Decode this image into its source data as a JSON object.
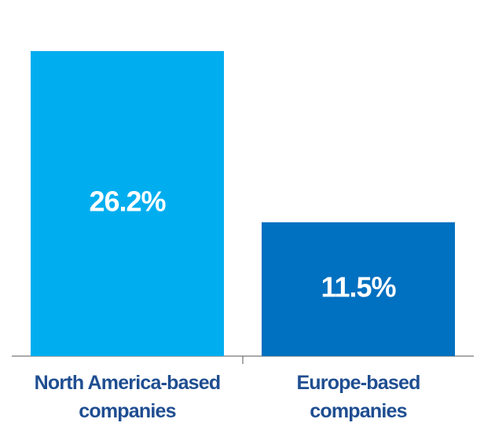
{
  "chart_data": {
    "type": "bar",
    "categories": [
      "North America-based companies",
      "Europe-based companies"
    ],
    "values": [
      26.2,
      11.5
    ],
    "value_labels": [
      "26.2%",
      "11.5%"
    ],
    "colors": [
      "#00aeef",
      "#0070c0"
    ]
  }
}
